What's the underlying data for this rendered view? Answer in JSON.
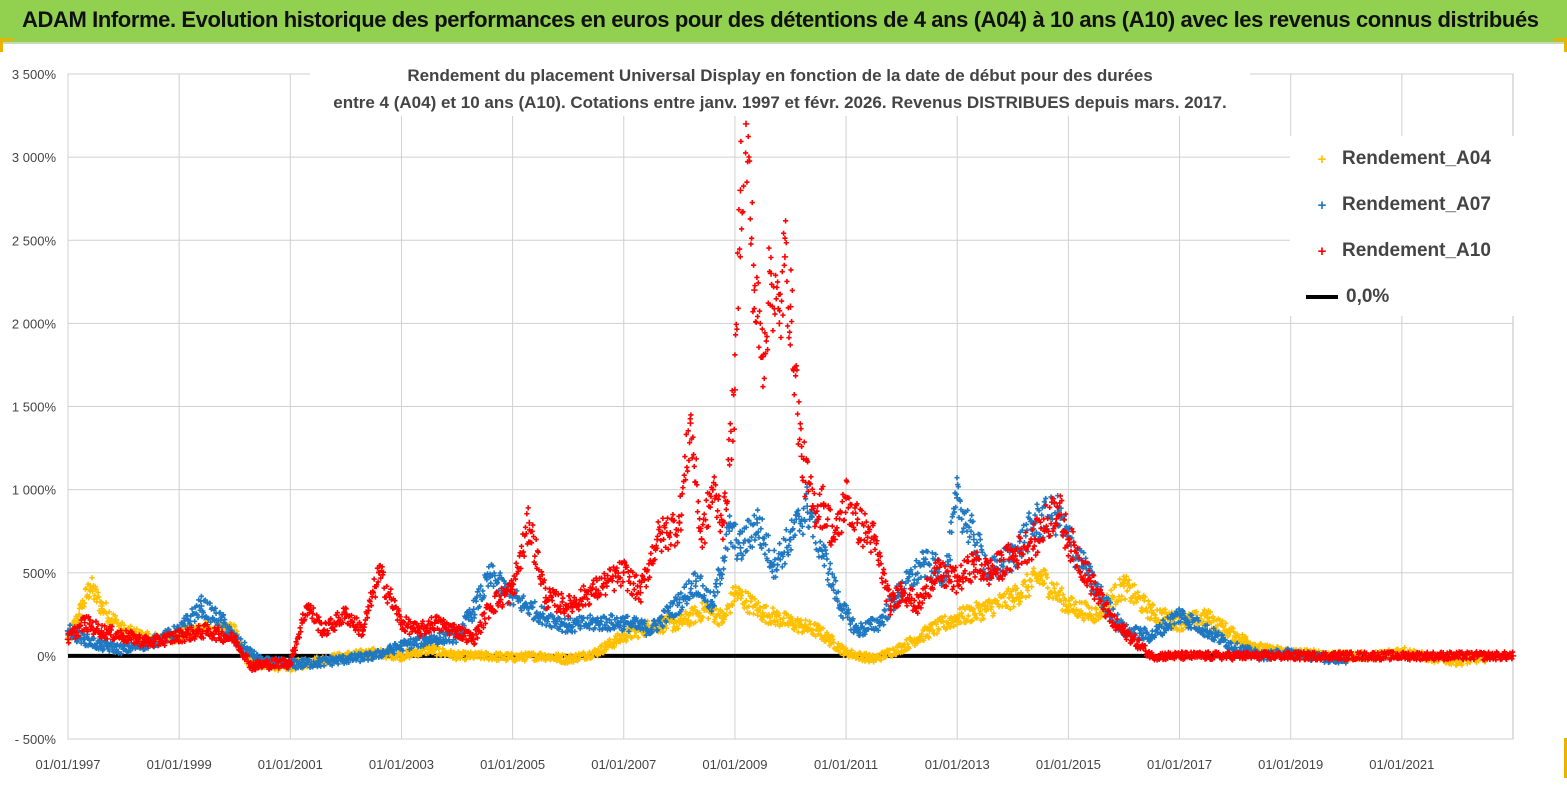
{
  "banner": {
    "title": "ADAM Informe. Evolution historique des performances en euros pour des détentions de 4 ans (A04) à 10 ans (A10) avec les revenus connus distribués"
  },
  "chart_data": {
    "type": "scatter",
    "title_line1": "Rendement du placement Universal Display en fonction de la date de début pour des durées",
    "title_line2": "entre 4 (A04) et 10 ans (A10). Cotations entre janv. 1997 et févr. 2026. Revenus DISTRIBUES depuis mars. 2017.",
    "xlabel": "",
    "ylabel": "",
    "ylim": [
      -500,
      3500
    ],
    "y_ticks": [
      -500,
      0,
      500,
      1000,
      1500,
      2000,
      2500,
      3000,
      3500
    ],
    "y_tick_labels": [
      "- 500%",
      "0%",
      "500%",
      "1 000%",
      "1 500%",
      "2 000%",
      "2 500%",
      "3 000%",
      "3 500%"
    ],
    "xlim": [
      1997.0,
      2023.0
    ],
    "x_ticks": [
      1997,
      1999,
      2001,
      2003,
      2005,
      2007,
      2009,
      2011,
      2013,
      2015,
      2017,
      2019,
      2021
    ],
    "x_tick_labels": [
      "01/01/1997",
      "01/01/1999",
      "01/01/2001",
      "01/01/2003",
      "01/01/2005",
      "01/01/2007",
      "01/01/2009",
      "01/01/2011",
      "01/01/2013",
      "01/01/2015",
      "01/01/2017",
      "01/01/2019",
      "01/01/2021"
    ],
    "grid": true,
    "legend_position": "top-right",
    "series": [
      {
        "name": "Rendement_A04",
        "color": "#ffc000",
        "marker": "+",
        "x": [
          1997.0,
          1997.2,
          1997.4,
          1997.6,
          1998.0,
          1998.5,
          1999.0,
          1999.5,
          2000.0,
          2000.2,
          2000.5,
          2001.0,
          2001.5,
          2002.0,
          2002.5,
          2003.0,
          2003.5,
          2004.0,
          2004.5,
          2005.0,
          2005.5,
          2006.0,
          2006.5,
          2007.0,
          2007.5,
          2008.0,
          2008.5,
          2008.8,
          2009.0,
          2009.5,
          2010.0,
          2010.5,
          2011.0,
          2011.5,
          2012.0,
          2012.5,
          2013.0,
          2013.5,
          2014.0,
          2014.5,
          2015.0,
          2015.5,
          2016.0,
          2016.5,
          2017.0,
          2017.5,
          2018.0,
          2018.5,
          2019.0,
          2019.5,
          2020.0,
          2020.5,
          2021.0,
          2021.5,
          2022.0,
          2022.5
        ],
        "y": [
          100,
          250,
          420,
          300,
          150,
          100,
          120,
          180,
          150,
          -20,
          -50,
          -60,
          -30,
          0,
          20,
          0,
          40,
          0,
          0,
          -10,
          0,
          -20,
          20,
          120,
          180,
          200,
          280,
          220,
          380,
          260,
          200,
          150,
          20,
          -20,
          50,
          150,
          230,
          280,
          350,
          480,
          300,
          250,
          420,
          260,
          200,
          230,
          120,
          40,
          20,
          10,
          0,
          0,
          30,
          -10,
          -30,
          -10
        ]
      },
      {
        "name": "Rendement_A07",
        "color": "#1f78c1",
        "marker": "+",
        "x": [
          1997.0,
          1997.3,
          1997.6,
          1998.0,
          1998.5,
          1999.0,
          1999.4,
          1999.8,
          2000.0,
          2000.5,
          2001.0,
          2001.5,
          2002.0,
          2002.5,
          2003.0,
          2003.5,
          2004.0,
          2004.3,
          2004.6,
          2005.0,
          2005.5,
          2006.0,
          2006.5,
          2007.0,
          2007.5,
          2008.0,
          2008.3,
          2008.6,
          2008.9,
          2009.1,
          2009.4,
          2009.7,
          2010.0,
          2010.3,
          2010.6,
          2010.9,
          2011.2,
          2011.6,
          2012.0,
          2012.4,
          2012.8,
          2013.0,
          2013.3,
          2013.6,
          2014.0,
          2014.4,
          2014.8,
          2015.0,
          2015.5,
          2016.0,
          2016.5,
          2017.0,
          2017.5,
          2018.0,
          2018.5,
          2019.0,
          2019.5,
          2020.0
        ],
        "y": [
          150,
          100,
          60,
          40,
          80,
          150,
          300,
          200,
          100,
          -40,
          -50,
          -40,
          -20,
          0,
          60,
          100,
          120,
          280,
          480,
          350,
          250,
          180,
          200,
          200,
          160,
          320,
          450,
          300,
          750,
          650,
          800,
          550,
          700,
          900,
          600,
          300,
          150,
          200,
          400,
          550,
          500,
          950,
          700,
          500,
          600,
          800,
          850,
          700,
          400,
          150,
          120,
          250,
          150,
          50,
          0,
          20,
          -10,
          -20
        ]
      },
      {
        "name": "Rendement_A10",
        "color": "#ff0000",
        "marker": "+",
        "x": [
          1997.0,
          1997.3,
          1997.6,
          1998.0,
          1998.5,
          1999.0,
          1999.5,
          1999.8,
          2000.0,
          2000.3,
          2000.6,
          2001.0,
          2001.3,
          2001.6,
          2002.0,
          2002.3,
          2002.6,
          2003.0,
          2003.3,
          2003.6,
          2004.0,
          2004.3,
          2004.6,
          2005.0,
          2005.3,
          2005.6,
          2006.0,
          2006.5,
          2007.0,
          2007.3,
          2007.6,
          2008.0,
          2008.2,
          2008.4,
          2008.6,
          2008.8,
          2009.0,
          2009.1,
          2009.2,
          2009.35,
          2009.5,
          2009.65,
          2009.8,
          2009.9,
          2010.0,
          2010.2,
          2010.4,
          2010.6,
          2010.8,
          2011.0,
          2011.2,
          2011.5,
          2011.8,
          2012.0,
          2012.3,
          2012.6,
          2013.0,
          2013.3,
          2013.6,
          2014.0,
          2014.4,
          2014.8,
          2015.0,
          2015.4,
          2015.8,
          2016.0,
          2016.5,
          2017.0,
          2017.5,
          2018.0,
          2018.5,
          2019.0,
          2019.5,
          2020.0,
          2020.5,
          2021.0,
          2021.5,
          2022.0,
          2022.5,
          2023.0
        ],
        "y": [
          100,
          200,
          150,
          120,
          80,
          120,
          150,
          120,
          100,
          -60,
          -50,
          -40,
          300,
          150,
          250,
          150,
          500,
          200,
          150,
          200,
          150,
          100,
          300,
          400,
          800,
          350,
          300,
          400,
          500,
          380,
          700,
          800,
          1400,
          700,
          1000,
          800,
          1600,
          2800,
          3200,
          2200,
          1800,
          2300,
          2000,
          2400,
          2100,
          1200,
          900,
          900,
          700,
          950,
          800,
          700,
          300,
          400,
          300,
          500,
          450,
          550,
          500,
          600,
          700,
          900,
          700,
          450,
          200,
          150,
          0,
          0,
          0,
          0,
          0,
          0,
          0,
          0,
          0,
          0,
          0,
          0,
          0,
          0
        ]
      },
      {
        "name": "0,0%",
        "color": "#000000",
        "marker": "line",
        "x": [
          1997.0,
          2023.0
        ],
        "y": [
          0,
          0
        ]
      }
    ]
  }
}
